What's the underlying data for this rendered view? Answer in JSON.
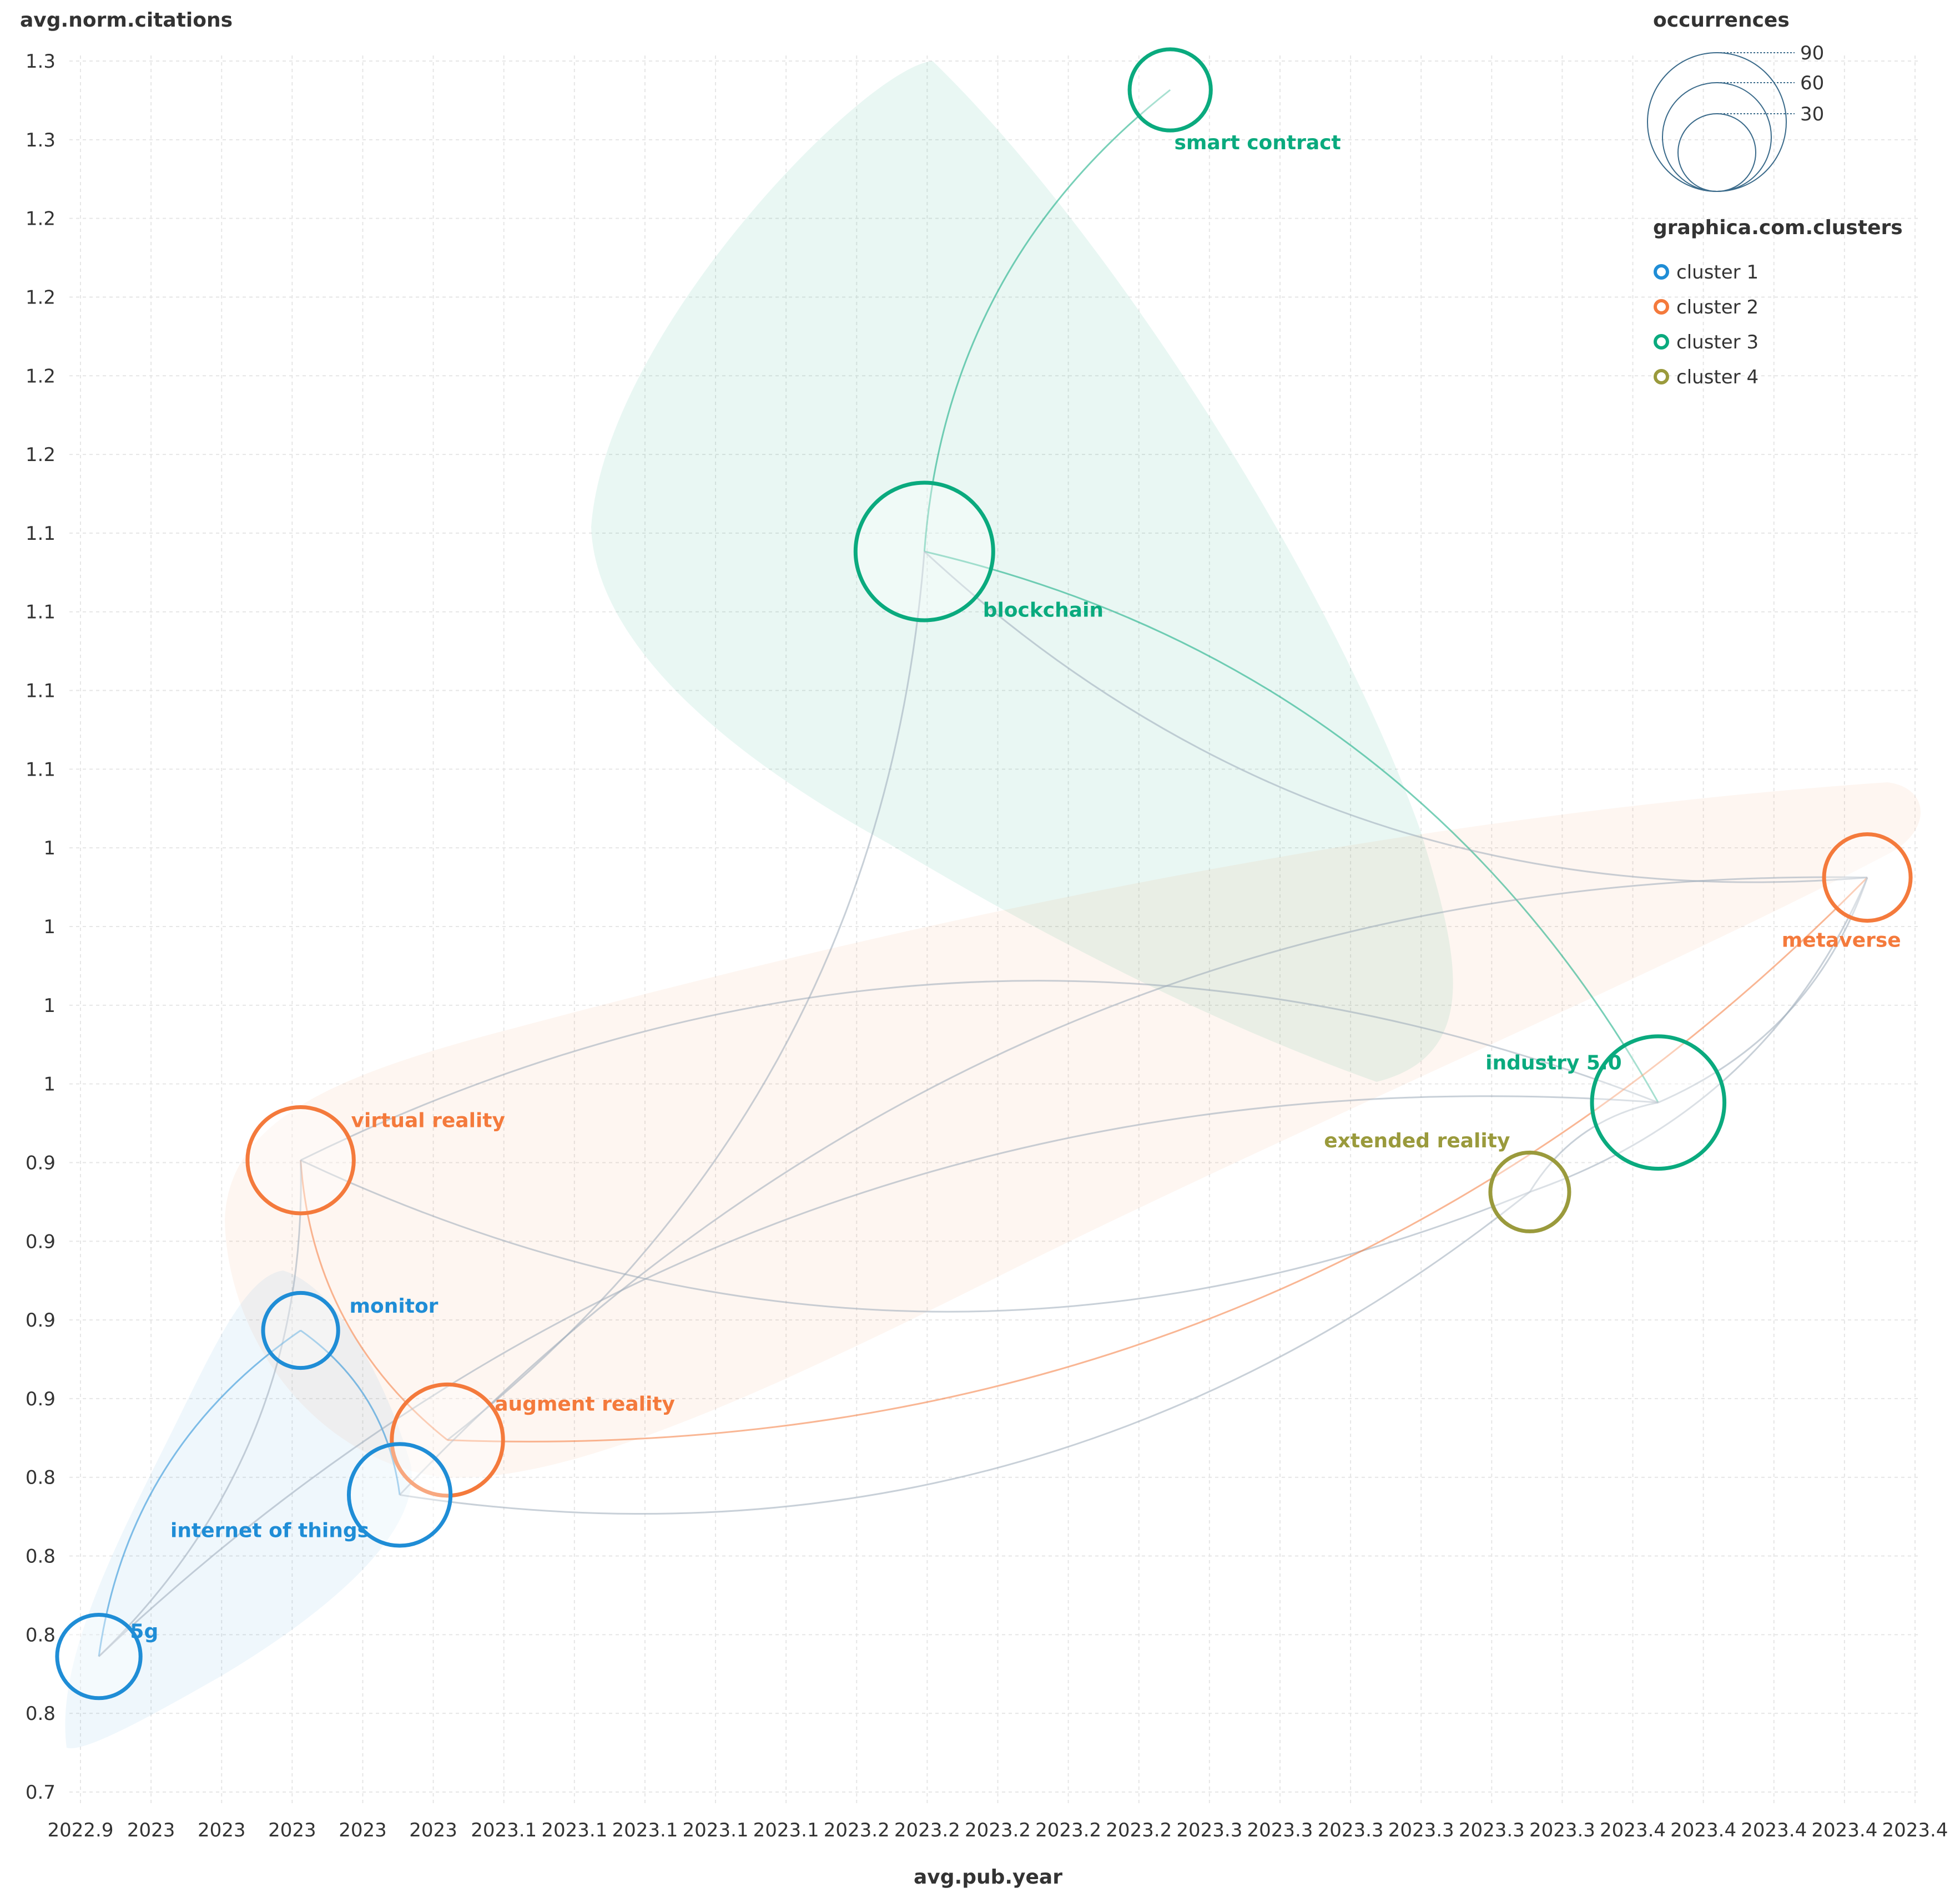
{
  "chart_data": {
    "type": "bubble-network",
    "ylabel": "avg.norm.citations",
    "xlabel": "avg.pub.year",
    "x_ticks": [
      "2022.9",
      "2023",
      "2023",
      "2023",
      "2023",
      "2023",
      "2023.1",
      "2023.1",
      "2023.1",
      "2023.1",
      "2023.1",
      "2023.2",
      "2023.2",
      "2023.2",
      "2023.2",
      "2023.2",
      "2023.3",
      "2023.3",
      "2023.3",
      "2023.3",
      "2023.3",
      "2023.3",
      "2023.4",
      "2023.4",
      "2023.4",
      "2023.4",
      "2023.4"
    ],
    "y_ticks": [
      "1.3",
      "1.3",
      "1.2",
      "1.2",
      "1.2",
      "1.2",
      "1.1",
      "1.1",
      "1.1",
      "1.1",
      "1",
      "1",
      "1",
      "1",
      "0.9",
      "0.9",
      "0.9",
      "0.9",
      "0.8",
      "0.8",
      "0.8",
      "0.8",
      "0.7"
    ],
    "xlim": [
      2022.9,
      2023.4
    ],
    "ylim": [
      0.7,
      1.3
    ],
    "nodes": [
      {
        "label": "smart contract",
        "x": 2023.197,
        "y": 1.29,
        "occurrences": 20,
        "cluster": 3
      },
      {
        "label": "blockchain",
        "x": 2023.13,
        "y": 1.13,
        "occurrences": 100,
        "cluster": 3
      },
      {
        "label": "metaverse",
        "x": 2023.387,
        "y": 1.017,
        "occurrences": 25,
        "cluster": 2
      },
      {
        "label": "industry 5.0",
        "x": 2023.33,
        "y": 0.939,
        "occurrences": 90,
        "cluster": 3
      },
      {
        "label": "extended reality",
        "x": 2023.295,
        "y": 0.908,
        "occurrences": 18,
        "cluster": 4
      },
      {
        "label": "virtual reality",
        "x": 2022.96,
        "y": 0.919,
        "occurrences": 48,
        "cluster": 2
      },
      {
        "label": "monitor",
        "x": 2022.96,
        "y": 0.86,
        "occurrences": 15,
        "cluster": 1
      },
      {
        "label": "augment reality",
        "x": 2023.0,
        "y": 0.822,
        "occurrences": 55,
        "cluster": 2
      },
      {
        "label": "internet of things",
        "x": 2022.987,
        "y": 0.803,
        "occurrences": 42,
        "cluster": 1
      },
      {
        "label": "5g",
        "x": 2022.905,
        "y": 0.747,
        "occurrences": 22,
        "cluster": 1
      }
    ],
    "edges": [
      [
        "smart contract",
        "blockchain"
      ],
      [
        "blockchain",
        "industry 5.0"
      ],
      [
        "blockchain",
        "metaverse"
      ],
      [
        "blockchain",
        "augment reality"
      ],
      [
        "virtual reality",
        "augment reality"
      ],
      [
        "virtual reality",
        "5g"
      ],
      [
        "virtual reality",
        "extended reality"
      ],
      [
        "virtual reality",
        "industry 5.0"
      ],
      [
        "monitor",
        "5g"
      ],
      [
        "monitor",
        "internet of things"
      ],
      [
        "augment reality",
        "metaverse"
      ],
      [
        "internet of things",
        "metaverse"
      ],
      [
        "internet of things",
        "extended reality"
      ],
      [
        "5g",
        "industry 5.0"
      ],
      [
        "extended reality",
        "metaverse"
      ],
      [
        "extended reality",
        "industry 5.0"
      ],
      [
        "industry 5.0",
        "metaverse"
      ]
    ]
  },
  "legend": {
    "size_title": "occurrences",
    "size_labels": [
      "90",
      "60",
      "30"
    ],
    "cluster_title": "graphica.com.clusters",
    "clusters": [
      {
        "label": "cluster 1",
        "color": "#1f8dd6"
      },
      {
        "label": "cluster 2",
        "color": "#f47a3c"
      },
      {
        "label": "cluster 3",
        "color": "#0aaa7e"
      },
      {
        "label": "cluster 4",
        "color": "#9a9a3c"
      }
    ]
  }
}
